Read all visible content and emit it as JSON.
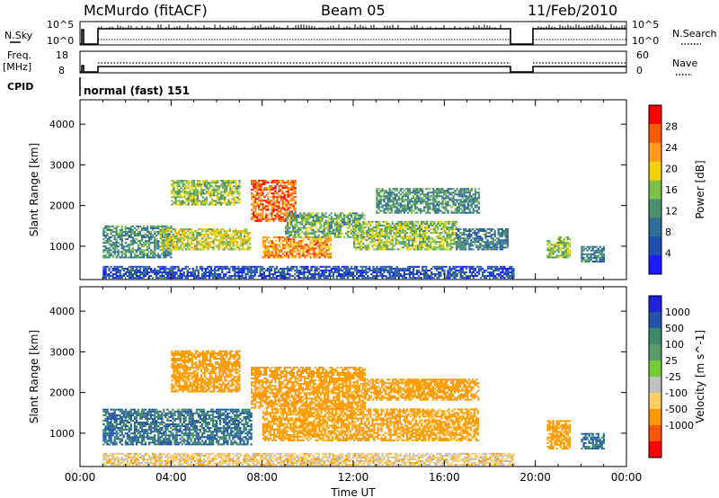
{
  "header": {
    "station": "McMurdo (fitACF)",
    "beam": "Beam 05",
    "date": "11/Feb/2010"
  },
  "status_panels": {
    "nsky_label": "N.Sky",
    "nsky_ticks": [
      "10^5",
      "10^0"
    ],
    "nsearch_label": "N.Search",
    "freq_label_1": "Freq.",
    "freq_label_2": "[MHz]",
    "freq_ticks": [
      "18",
      "8"
    ],
    "nave_label": "Nave",
    "nave_ticks": [
      "60",
      "0"
    ],
    "cpid_label": "CPID",
    "cpid_value": "normal (fast) 151"
  },
  "chart_data": [
    {
      "type": "heatmap",
      "title": "Power",
      "xlabel": "Time UT",
      "ylabel": "Slant Range [km]",
      "x_ticks": [
        "00:00",
        "04:00",
        "08:00",
        "12:00",
        "16:00",
        "20:00",
        "00:00"
      ],
      "xlim_hours": [
        0,
        24
      ],
      "y_ticks": [
        1000,
        2000,
        3000,
        4000
      ],
      "ylim": [
        180,
        4600
      ],
      "colorbar": {
        "label": "Power [dB]",
        "ticks": [
          4,
          8,
          12,
          16,
          20,
          24,
          28
        ],
        "range": [
          0,
          32
        ]
      },
      "data_gaps_hours": [
        [
          0.3,
          0.9
        ],
        [
          19.0,
          19.6
        ]
      ],
      "regions": [
        {
          "t": [
            1.0,
            4.0
          ],
          "r": [
            700,
            1500
          ],
          "level": 12
        },
        {
          "t": [
            3.5,
            7.5
          ],
          "r": [
            900,
            1400
          ],
          "level": 18
        },
        {
          "t": [
            4.0,
            7.0
          ],
          "r": [
            2000,
            2600
          ],
          "level": 16
        },
        {
          "t": [
            7.5,
            9.5
          ],
          "r": [
            1600,
            2600
          ],
          "level": 26
        },
        {
          "t": [
            8.0,
            11.0
          ],
          "r": [
            700,
            1200
          ],
          "level": 24
        },
        {
          "t": [
            9.0,
            12.5
          ],
          "r": [
            1200,
            1800
          ],
          "level": 14
        },
        {
          "t": [
            12.0,
            16.5
          ],
          "r": [
            900,
            1600
          ],
          "level": 16
        },
        {
          "t": [
            13.0,
            17.5
          ],
          "r": [
            1800,
            2400
          ],
          "level": 12
        },
        {
          "t": [
            16.5,
            18.8
          ],
          "r": [
            900,
            1400
          ],
          "level": 10
        },
        {
          "t": [
            20.5,
            21.5
          ],
          "r": [
            700,
            1200
          ],
          "level": 16
        },
        {
          "t": [
            22.0,
            23.0
          ],
          "r": [
            600,
            1000
          ],
          "level": 10
        },
        {
          "t": [
            1.0,
            19.0
          ],
          "r": [
            200,
            500
          ],
          "level": 6
        }
      ]
    },
    {
      "type": "heatmap",
      "title": "Velocity",
      "xlabel": "Time UT",
      "ylabel": "Slant Range [km]",
      "x_ticks": [
        "00:00",
        "04:00",
        "08:00",
        "12:00",
        "16:00",
        "20:00",
        "00:00"
      ],
      "xlim_hours": [
        0,
        24
      ],
      "y_ticks": [
        1000,
        2000,
        3000,
        4000
      ],
      "ylim": [
        180,
        4600
      ],
      "colorbar": {
        "label": "Velocity [m s^-1]",
        "ticks": [
          "1000",
          "500",
          "100",
          "25",
          "-25",
          "-100",
          "-500",
          "-1000"
        ]
      },
      "regions": [
        {
          "t": [
            1.0,
            7.5
          ],
          "r": [
            700,
            1600
          ],
          "velocity": 300
        },
        {
          "t": [
            4.0,
            7.0
          ],
          "r": [
            2000,
            3000
          ],
          "velocity": -200
        },
        {
          "t": [
            7.5,
            12.5
          ],
          "r": [
            1600,
            2600
          ],
          "velocity": -200
        },
        {
          "t": [
            8.0,
            17.5
          ],
          "r": [
            800,
            1600
          ],
          "velocity": -150
        },
        {
          "t": [
            12.5,
            17.5
          ],
          "r": [
            1800,
            2300
          ],
          "velocity": -200
        },
        {
          "t": [
            20.5,
            21.5
          ],
          "r": [
            600,
            1300
          ],
          "velocity": -200
        },
        {
          "t": [
            22.0,
            23.0
          ],
          "r": [
            600,
            1000
          ],
          "velocity": 300
        },
        {
          "t": [
            1.0,
            19.0
          ],
          "r": [
            200,
            500
          ],
          "velocity": -50
        }
      ]
    }
  ]
}
